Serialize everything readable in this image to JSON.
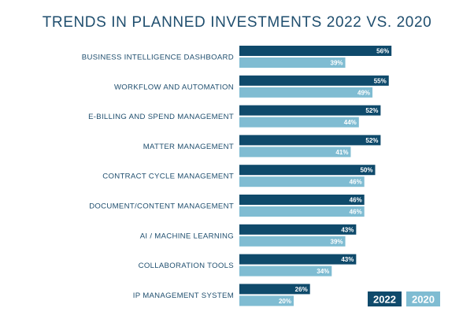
{
  "chart_data": {
    "type": "bar",
    "orientation": "horizontal",
    "title": "TRENDS IN PLANNED INVESTMENTS 2022 VS. 2020",
    "categories": [
      "BUSINESS INTELLIGENCE DASHBOARD",
      "WORKFLOW AND AUTOMATION",
      "E-BILLING AND SPEND MANAGEMENT",
      "MATTER MANAGEMENT",
      "CONTRACT CYCLE MANAGEMENT",
      "DOCUMENT/CONTENT MANAGEMENT",
      "AI / MACHINE LEARNING",
      "COLLABORATION TOOLS",
      "IP MANAGEMENT SYSTEM"
    ],
    "series": [
      {
        "name": "2022",
        "color": "#0f4a6b",
        "values": [
          56,
          55,
          52,
          52,
          50,
          46,
          43,
          43,
          26
        ]
      },
      {
        "name": "2020",
        "color": "#7fbcd2",
        "values": [
          39,
          49,
          44,
          41,
          46,
          46,
          39,
          34,
          20
        ]
      }
    ],
    "value_suffix": "%",
    "xlim": [
      0,
      60
    ],
    "grid": false,
    "legend_position": "bottom-right",
    "colors": {
      "title": "#1f4e6e",
      "labels": "#1f4e6e"
    }
  }
}
